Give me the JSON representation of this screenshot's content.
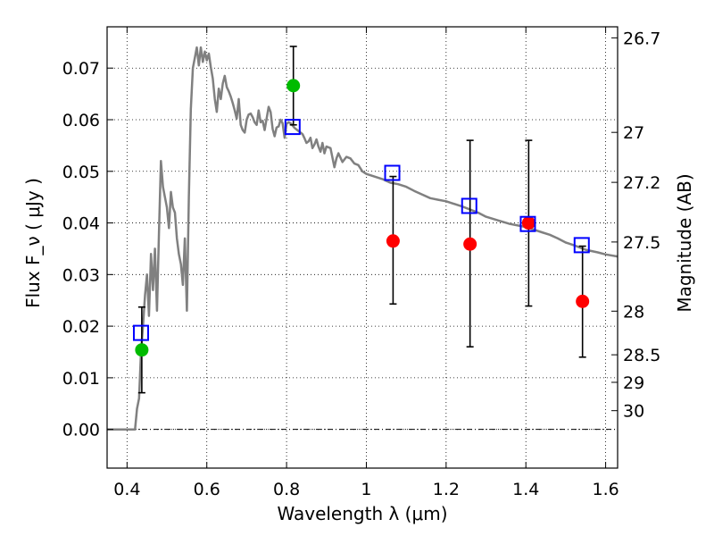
{
  "chart_data": {
    "type": "scatter",
    "title": "",
    "xlabel": "Wavelength λ (μm)",
    "ylabel": "Flux F_ν ( μJy )",
    "y2label": "Magnitude (AB)",
    "xlim": [
      0.35,
      1.63
    ],
    "ylim": [
      -0.0075,
      0.078
    ],
    "xticks": [
      0.4,
      0.6,
      0.8,
      1.0,
      1.2,
      1.4,
      1.6
    ],
    "xtick_labels": [
      "0.4",
      "0.6",
      "0.8",
      "1",
      "1.2",
      "1.4",
      "1.6"
    ],
    "yticks": [
      0.0,
      0.01,
      0.02,
      0.03,
      0.04,
      0.05,
      0.06,
      0.07
    ],
    "ytick_labels": [
      "0.00",
      "0.01",
      "0.02",
      "0.03",
      "0.04",
      "0.05",
      "0.06",
      "0.07"
    ],
    "y2ticks": [
      {
        "label": "26.7",
        "mag": 26.7
      },
      {
        "label": "27",
        "mag": 27.0
      },
      {
        "label": "27.2",
        "mag": 27.2
      },
      {
        "label": "27.5",
        "mag": 27.5
      },
      {
        "label": "28",
        "mag": 28.0
      },
      {
        "label": "28.5",
        "mag": 28.5
      },
      {
        "label": "29",
        "mag": 29.0
      },
      {
        "label": "30",
        "mag": 30.0
      }
    ],
    "grid": true,
    "colors": {
      "template": "#808080",
      "model_photometry": "#0000ff",
      "detection": "#00bb00",
      "measurement": "#ff0000",
      "errorbar": "#000000",
      "zero_line": "#000000"
    },
    "series": [
      {
        "kind": "template_spectrum",
        "x": [
          0.35,
          0.41,
          0.42,
          0.425,
          0.43,
          0.435,
          0.44,
          0.445,
          0.45,
          0.455,
          0.46,
          0.465,
          0.47,
          0.475,
          0.48,
          0.485,
          0.49,
          0.495,
          0.5,
          0.505,
          0.51,
          0.515,
          0.52,
          0.525,
          0.53,
          0.535,
          0.54,
          0.545,
          0.55,
          0.555,
          0.56,
          0.565,
          0.57,
          0.575,
          0.58,
          0.585,
          0.59,
          0.595,
          0.6,
          0.605,
          0.61,
          0.615,
          0.62,
          0.625,
          0.63,
          0.635,
          0.64,
          0.645,
          0.65,
          0.655,
          0.66,
          0.665,
          0.67,
          0.675,
          0.68,
          0.685,
          0.69,
          0.695,
          0.7,
          0.705,
          0.71,
          0.715,
          0.72,
          0.725,
          0.73,
          0.735,
          0.74,
          0.745,
          0.75,
          0.755,
          0.76,
          0.765,
          0.77,
          0.775,
          0.78,
          0.785,
          0.79,
          0.795,
          0.8,
          0.805,
          0.81,
          0.815,
          0.82,
          0.825,
          0.83,
          0.835,
          0.84,
          0.845,
          0.85,
          0.855,
          0.86,
          0.865,
          0.87,
          0.875,
          0.88,
          0.885,
          0.89,
          0.895,
          0.9,
          0.91,
          0.92,
          0.925,
          0.93,
          0.94,
          0.95,
          0.96,
          0.97,
          0.98,
          0.99,
          1.0,
          1.02,
          1.04,
          1.06,
          1.08,
          1.1,
          1.12,
          1.14,
          1.16,
          1.18,
          1.2,
          1.24,
          1.28,
          1.3,
          1.33,
          1.36,
          1.38,
          1.4,
          1.42,
          1.44,
          1.46,
          1.48,
          1.5,
          1.52,
          1.55,
          1.58,
          1.6,
          1.63
        ],
        "y": [
          0.0,
          0.0,
          0.0,
          0.004,
          0.006,
          0.015,
          0.02,
          0.026,
          0.03,
          0.022,
          0.034,
          0.027,
          0.035,
          0.023,
          0.038,
          0.052,
          0.047,
          0.045,
          0.043,
          0.039,
          0.046,
          0.043,
          0.042,
          0.037,
          0.034,
          0.032,
          0.028,
          0.037,
          0.023,
          0.045,
          0.062,
          0.07,
          0.072,
          0.074,
          0.0705,
          0.074,
          0.0712,
          0.0732,
          0.0715,
          0.0728,
          0.0702,
          0.068,
          0.064,
          0.0615,
          0.066,
          0.064,
          0.067,
          0.0685,
          0.0663,
          0.0655,
          0.0645,
          0.0632,
          0.0618,
          0.0602,
          0.064,
          0.059,
          0.058,
          0.0575,
          0.06,
          0.061,
          0.0612,
          0.0605,
          0.0595,
          0.059,
          0.0618,
          0.0595,
          0.0598,
          0.058,
          0.0603,
          0.0625,
          0.0615,
          0.0582,
          0.0568,
          0.0585,
          0.0587,
          0.06,
          0.0593,
          0.0565,
          0.0592,
          0.0595,
          0.0593,
          0.0589,
          0.0584,
          0.0581,
          0.0578,
          0.0575,
          0.0572,
          0.0564,
          0.0555,
          0.0558,
          0.0565,
          0.0545,
          0.0552,
          0.0562,
          0.0548,
          0.0538,
          0.0555,
          0.0535,
          0.0548,
          0.0545,
          0.0508,
          0.0525,
          0.0535,
          0.0518,
          0.0528,
          0.0525,
          0.0515,
          0.0512,
          0.05,
          0.0495,
          0.049,
          0.0485,
          0.0478,
          0.0475,
          0.047,
          0.0462,
          0.0455,
          0.0448,
          0.0445,
          0.0442,
          0.0432,
          0.042,
          0.0412,
          0.0405,
          0.0398,
          0.0395,
          0.0392,
          0.0387,
          0.0382,
          0.0377,
          0.037,
          0.0362,
          0.0357,
          0.0348,
          0.0343,
          0.0339,
          0.0335
        ]
      },
      {
        "kind": "model_photometry",
        "marker": "open-square",
        "x": [
          0.435,
          0.815,
          1.065,
          1.258,
          1.405,
          1.54
        ],
        "y": [
          0.0187,
          0.0586,
          0.0497,
          0.0433,
          0.0398,
          0.0357
        ]
      },
      {
        "kind": "observed_with_errors",
        "x": [
          0.437,
          0.817,
          1.067,
          1.26,
          1.407,
          1.542
        ],
        "y": [
          0.0154,
          0.0666,
          0.0365,
          0.0359,
          0.04,
          0.0248
        ],
        "yerr_low": [
          0.0071,
          0.059,
          0.0243,
          0.016,
          0.0239,
          0.014
        ],
        "yerr_high": [
          0.0237,
          0.0742,
          0.049,
          0.056,
          0.056,
          0.0355
        ],
        "colors": [
          "#00bb00",
          "#00bb00",
          "#ff0000",
          "#ff0000",
          "#ff0000",
          "#ff0000"
        ]
      }
    ]
  }
}
